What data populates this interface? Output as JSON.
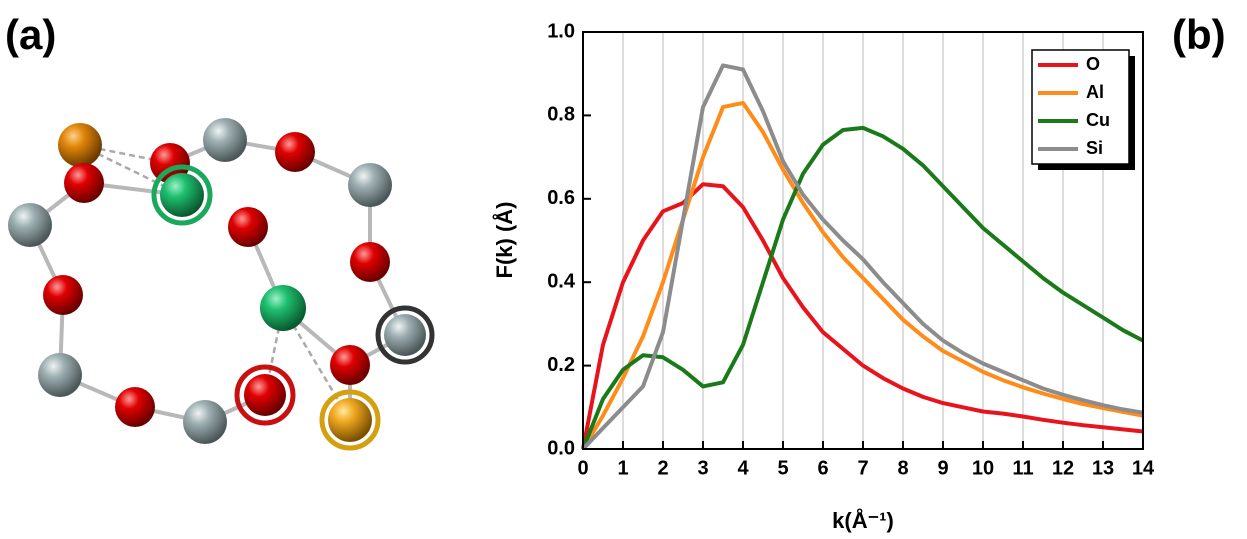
{
  "panel_labels": [
    "(a)",
    "(b)"
  ],
  "chart_data": {
    "type": "line",
    "xlabel": "k(Å⁻¹)",
    "ylabel": "F(k) (Å)",
    "x": [
      0,
      0.5,
      1,
      1.5,
      2,
      2.5,
      3,
      3.5,
      4,
      4.5,
      5,
      5.5,
      6,
      6.5,
      7,
      7.5,
      8,
      8.5,
      9,
      9.5,
      10,
      10.5,
      11,
      11.5,
      12,
      12.5,
      13,
      13.5,
      14
    ],
    "series": [
      {
        "name": "O",
        "color": "#e8141c",
        "values": [
          0,
          0.25,
          0.4,
          0.5,
          0.57,
          0.59,
          0.635,
          0.63,
          0.58,
          0.5,
          0.41,
          0.34,
          0.28,
          0.24,
          0.2,
          0.17,
          0.145,
          0.125,
          0.11,
          0.1,
          0.09,
          0.085,
          0.078,
          0.07,
          0.063,
          0.057,
          0.052,
          0.047,
          0.042
        ]
      },
      {
        "name": "Al",
        "color": "#ff8c1a",
        "values": [
          0,
          0.08,
          0.17,
          0.27,
          0.4,
          0.55,
          0.7,
          0.82,
          0.83,
          0.76,
          0.67,
          0.59,
          0.52,
          0.46,
          0.41,
          0.36,
          0.31,
          0.27,
          0.235,
          0.21,
          0.185,
          0.165,
          0.148,
          0.133,
          0.12,
          0.108,
          0.098,
          0.089,
          0.08
        ]
      },
      {
        "name": "Cu",
        "color": "#1a7a1a",
        "values": [
          0,
          0.12,
          0.19,
          0.225,
          0.22,
          0.19,
          0.15,
          0.16,
          0.25,
          0.4,
          0.55,
          0.66,
          0.73,
          0.765,
          0.77,
          0.75,
          0.72,
          0.68,
          0.63,
          0.58,
          0.53,
          0.49,
          0.45,
          0.41,
          0.375,
          0.345,
          0.315,
          0.285,
          0.26
        ]
      },
      {
        "name": "Si",
        "color": "#8c8c8c",
        "values": [
          0,
          0.05,
          0.1,
          0.15,
          0.28,
          0.55,
          0.82,
          0.92,
          0.91,
          0.81,
          0.69,
          0.61,
          0.55,
          0.5,
          0.455,
          0.4,
          0.35,
          0.3,
          0.26,
          0.23,
          0.205,
          0.185,
          0.165,
          0.145,
          0.13,
          0.117,
          0.105,
          0.095,
          0.087
        ]
      }
    ],
    "xlim": [
      0,
      14
    ],
    "xticks": [
      0,
      1,
      2,
      3,
      4,
      5,
      6,
      7,
      8,
      9,
      10,
      11,
      12,
      13,
      14
    ],
    "ylim": [
      0,
      1
    ],
    "yticks": [
      {
        "value": 0,
        "label": "0.0"
      },
      0.2,
      0.4,
      0.6,
      0.8,
      {
        "value": 1,
        "label": "1.0"
      }
    ],
    "grid": true,
    "legend": "top-right"
  }
}
